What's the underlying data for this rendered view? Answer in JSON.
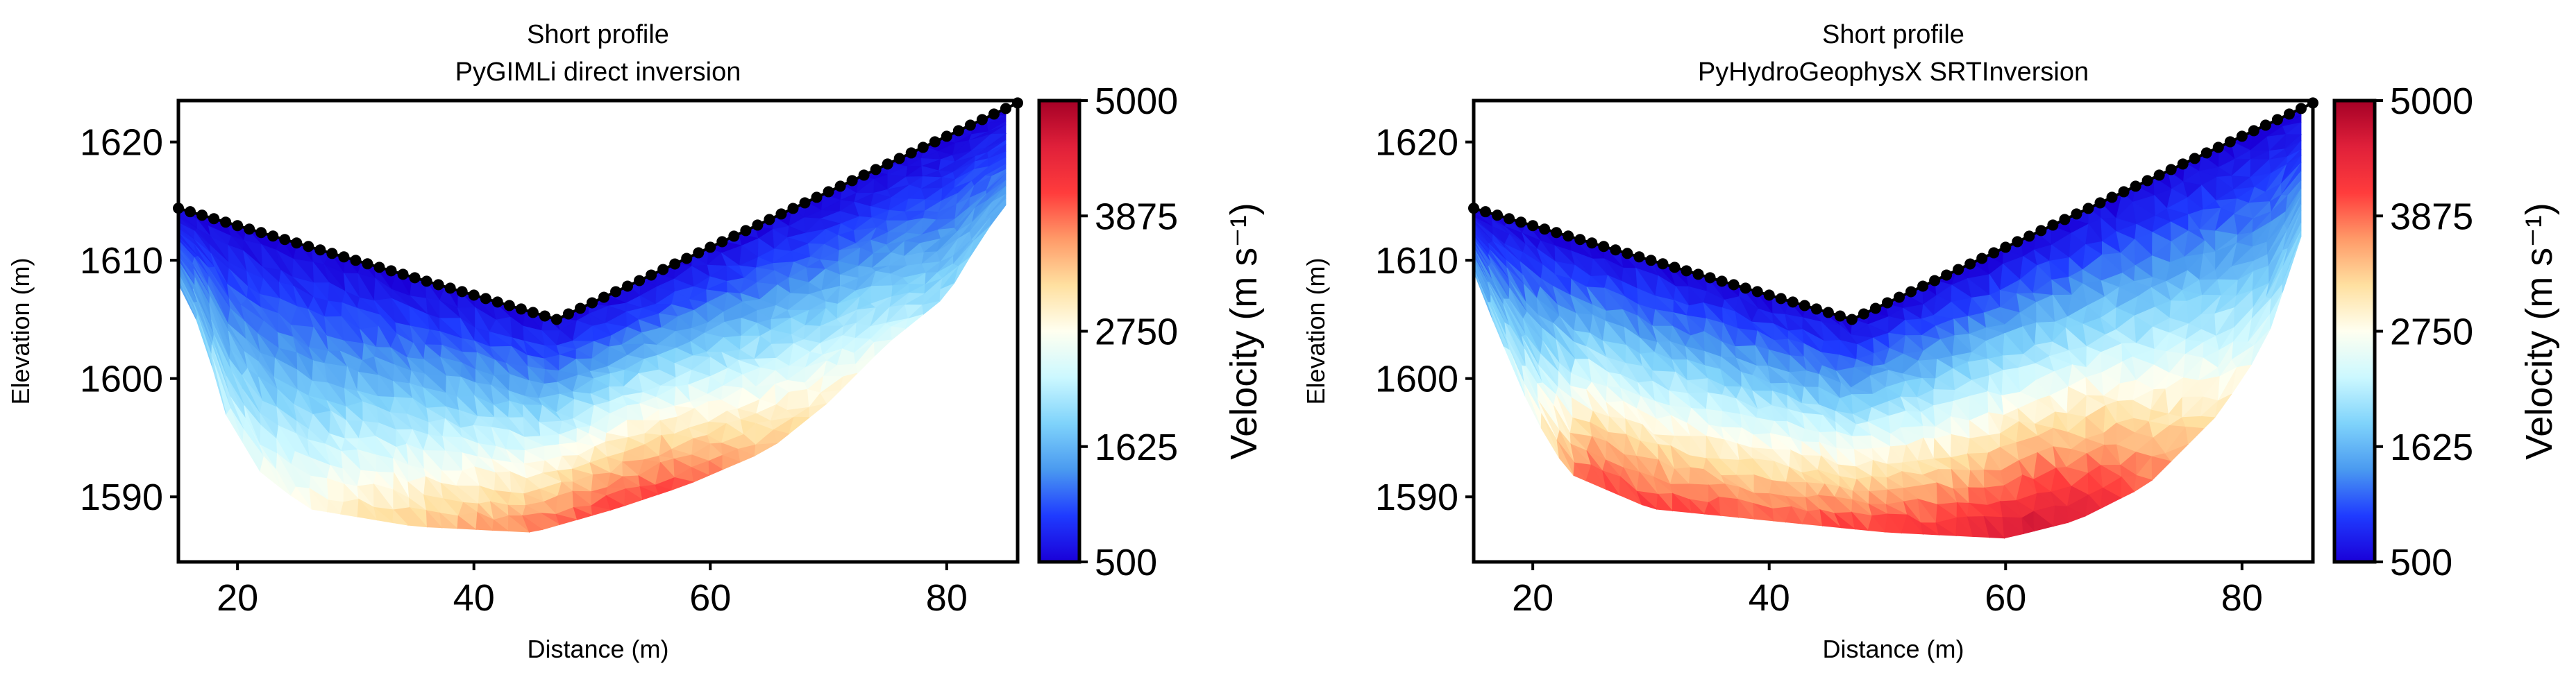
{
  "chart_data": [
    {
      "type": "heatmap",
      "title": [
        "Short profile",
        "PyGIMLi direct inversion"
      ],
      "xlabel": "Distance (m)",
      "ylabel": "Elevation (m)",
      "xlim": [
        15,
        86
      ],
      "ylim": [
        1584.5,
        1623.5
      ],
      "xticks": [
        "20",
        "40",
        "60",
        "80"
      ],
      "yticks": [
        "1590",
        "1600",
        "1610",
        "1620"
      ],
      "colorbar": {
        "label": "Velocity (m s⁻¹)",
        "range": [
          500,
          5000
        ],
        "ticks": [
          "500",
          "1625",
          "2750",
          "3875",
          "5000"
        ]
      },
      "topography": [
        [
          15,
          1614.4
        ],
        [
          47,
          1605.0
        ],
        [
          86,
          1623.3
        ]
      ],
      "electrodes": {
        "x_start": 15,
        "x_end": 86,
        "spacing": 1
      },
      "coverage_bottom": [
        [
          15,
          1608
        ],
        [
          17,
          1604
        ],
        [
          19,
          1597
        ],
        [
          22,
          1592
        ],
        [
          26,
          1589
        ],
        [
          35,
          1587.5
        ],
        [
          45,
          1587
        ],
        [
          52,
          1589
        ],
        [
          58,
          1591
        ],
        [
          65,
          1594
        ],
        [
          70,
          1598
        ],
        [
          75,
          1603
        ],
        [
          80,
          1607
        ],
        [
          83,
          1612
        ],
        [
          86,
          1616
        ]
      ],
      "velocity_at_bottom": [
        [
          15,
          1500
        ],
        [
          20,
          2500
        ],
        [
          30,
          3100
        ],
        [
          40,
          3600
        ],
        [
          50,
          4100
        ],
        [
          55,
          4200
        ],
        [
          62,
          3700
        ],
        [
          70,
          3000
        ],
        [
          80,
          2000
        ],
        [
          86,
          1500
        ]
      ],
      "velocity_at_surface": 500
    },
    {
      "type": "heatmap",
      "title": [
        "Short profile",
        "PyHydroGeophysX SRTInversion"
      ],
      "xlabel": "Distance (m)",
      "ylabel": "Elevation (m)",
      "xlim": [
        15,
        86
      ],
      "ylim": [
        1584.5,
        1623.5
      ],
      "xticks": [
        "20",
        "40",
        "60",
        "80"
      ],
      "yticks": [
        "1590",
        "1600",
        "1610",
        "1620"
      ],
      "colorbar": {
        "label": "Velocity (m s⁻¹)",
        "range": [
          500,
          5000
        ],
        "ticks": [
          "500",
          "1625",
          "2750",
          "3875",
          "5000"
        ]
      },
      "topography": [
        [
          15,
          1614.4
        ],
        [
          47,
          1605.0
        ],
        [
          86,
          1623.3
        ]
      ],
      "electrodes": {
        "x_start": 15,
        "x_end": 86,
        "spacing": 1
      },
      "coverage_bottom": [
        [
          15,
          1609
        ],
        [
          17,
          1604
        ],
        [
          20,
          1597
        ],
        [
          23,
          1592
        ],
        [
          30,
          1589
        ],
        [
          40,
          1588
        ],
        [
          50,
          1587
        ],
        [
          60,
          1586.5
        ],
        [
          66,
          1588
        ],
        [
          72,
          1591
        ],
        [
          78,
          1597
        ],
        [
          82,
          1603
        ],
        [
          85,
          1612
        ],
        [
          86,
          1616
        ]
      ],
      "velocity_at_bottom": [
        [
          15,
          1500
        ],
        [
          20,
          2800
        ],
        [
          25,
          4200
        ],
        [
          40,
          4000
        ],
        [
          55,
          4300
        ],
        [
          62,
          4800
        ],
        [
          68,
          4500
        ],
        [
          75,
          3500
        ],
        [
          80,
          2800
        ],
        [
          86,
          1600
        ]
      ],
      "velocity_at_surface": 500
    }
  ],
  "colormap": [
    "#1a00d8",
    "#1f3bff",
    "#4a9af0",
    "#7fd3fb",
    "#ccf8ff",
    "#fffff0",
    "#ffe0a0",
    "#ff9a68",
    "#ff3c3c",
    "#e0203a",
    "#a50026"
  ]
}
